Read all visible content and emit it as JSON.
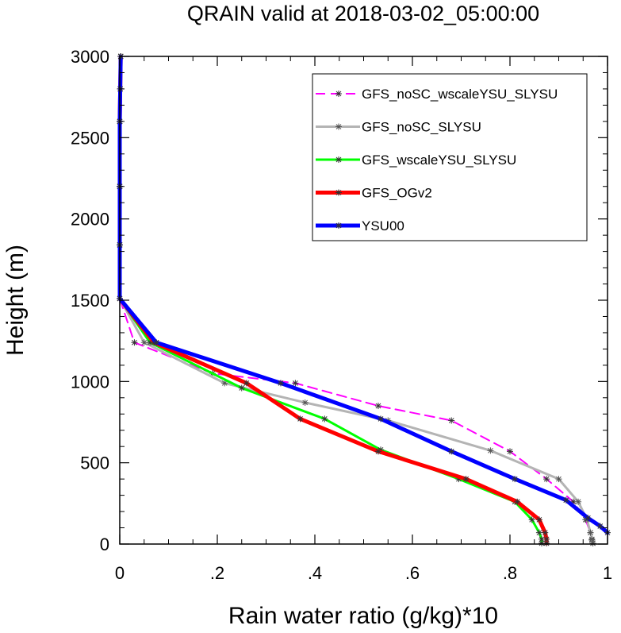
{
  "chart_data": {
    "type": "line",
    "title": "QRAIN valid at 2018-03-02_05:00:00",
    "xlabel": "Rain water ratio (g/kg)*10",
    "ylabel": "Height (m)",
    "xlim": [
      0,
      1
    ],
    "ylim": [
      0,
      3000
    ],
    "xticks": [
      "0",
      ".2",
      ".4",
      ".6",
      ".8",
      "1"
    ],
    "yticks": [
      "0",
      "500",
      "1000",
      "1500",
      "2000",
      "2500",
      "3000"
    ],
    "legend_position": "top-right",
    "grid": false,
    "series": [
      {
        "name": "GFS_noSC_wscaleYSU_SLYSU",
        "color": "#ff00ff",
        "dash": true,
        "width": 2,
        "x": [
          0.97,
          0.968,
          0.965,
          0.955,
          0.93,
          0.875,
          0.8,
          0.68,
          0.53,
          0.36,
          0.19,
          0.03,
          0.0,
          0.0,
          0.0,
          0.0,
          0.001,
          0.002
        ],
        "y": [
          5,
          25,
          70,
          150,
          260,
          400,
          570,
          760,
          850,
          990,
          1050,
          1240,
          1510,
          1840,
          2200,
          2600,
          2800,
          3000
        ]
      },
      {
        "name": "GFS_noSC_SLYSU",
        "color": "#b4b4b4",
        "dash": false,
        "width": 3,
        "x": [
          0.97,
          0.968,
          0.965,
          0.958,
          0.94,
          0.9,
          0.76,
          0.55,
          0.38,
          0.215,
          0.05,
          0.0,
          0.0,
          0.0,
          0.0,
          0.001,
          0.002
        ],
        "y": [
          5,
          30,
          70,
          150,
          260,
          400,
          575,
          760,
          870,
          990,
          1240,
          1510,
          1840,
          2200,
          2600,
          2800,
          3000
        ]
      },
      {
        "name": "GFS_wscaleYSU_SLYSU",
        "color": "#00ff00",
        "dash": false,
        "width": 3,
        "x": [
          0.865,
          0.865,
          0.86,
          0.845,
          0.81,
          0.695,
          0.535,
          0.42,
          0.25,
          0.062,
          0.0,
          0.0,
          0.0,
          0.0,
          0.001,
          0.002
        ],
        "y": [
          5,
          30,
          70,
          150,
          260,
          400,
          580,
          770,
          960,
          1240,
          1510,
          1840,
          2200,
          2600,
          2800,
          3000
        ]
      },
      {
        "name": "GFS_OGv2",
        "color": "#ff0000",
        "dash": false,
        "width": 5,
        "x": [
          0.875,
          0.875,
          0.872,
          0.86,
          0.815,
          0.71,
          0.53,
          0.37,
          0.26,
          0.07,
          0.0,
          0.0,
          0.0,
          0.0,
          0.001,
          0.002
        ],
        "y": [
          5,
          30,
          70,
          150,
          260,
          400,
          570,
          770,
          990,
          1240,
          1510,
          1840,
          2200,
          2600,
          2800,
          3000
        ]
      },
      {
        "name": "YSU00",
        "color": "#0000ff",
        "dash": false,
        "width": 5,
        "x": [
          1.0,
          0.985,
          0.96,
          0.915,
          0.81,
          0.68,
          0.535,
          0.33,
          0.075,
          0.0,
          0.0,
          0.0,
          0.0,
          0.001,
          0.002
        ],
        "y": [
          70,
          110,
          160,
          270,
          400,
          570,
          770,
          990,
          1240,
          1510,
          1840,
          2200,
          2600,
          2800,
          3000
        ]
      }
    ]
  }
}
